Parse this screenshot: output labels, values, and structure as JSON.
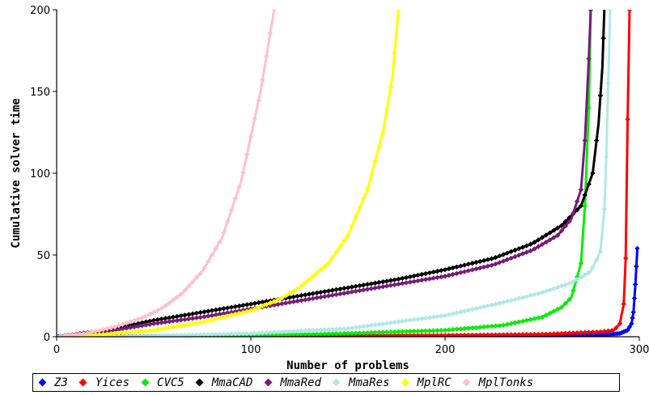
{
  "chart_data": {
    "type": "line",
    "title": "",
    "xlabel": "Number of problems",
    "ylabel": "Cumulative solver time",
    "xlim": [
      0,
      300
    ],
    "ylim": [
      0,
      200
    ],
    "x_ticks": [
      "0",
      "100",
      "200",
      "300"
    ],
    "y_ticks": [
      "0",
      "50",
      "100",
      "150",
      "200"
    ],
    "legend_position": "bottom",
    "series": [
      {
        "name": "Z3",
        "color": "#0000ff",
        "points": [
          [
            0,
            0
          ],
          [
            100,
            0.1
          ],
          [
            200,
            0.3
          ],
          [
            250,
            0.6
          ],
          [
            280,
            1
          ],
          [
            290,
            2
          ],
          [
            294,
            4
          ],
          [
            296,
            8
          ],
          [
            297,
            15
          ],
          [
            298,
            32
          ],
          [
            299,
            54
          ]
        ]
      },
      {
        "name": "Yices",
        "color": "#ff0000",
        "points": [
          [
            0,
            0
          ],
          [
            100,
            0.3
          ],
          [
            200,
            0.8
          ],
          [
            250,
            1.5
          ],
          [
            280,
            3
          ],
          [
            287,
            4
          ],
          [
            290,
            8
          ],
          [
            292,
            20
          ],
          [
            293,
            48
          ],
          [
            294,
            133
          ],
          [
            295,
            200
          ]
        ]
      },
      {
        "name": "CVC5",
        "color": "#00ee00",
        "points": [
          [
            0,
            0
          ],
          [
            50,
            0.5
          ],
          [
            100,
            1
          ],
          [
            150,
            2
          ],
          [
            200,
            4
          ],
          [
            230,
            7
          ],
          [
            250,
            12
          ],
          [
            260,
            18
          ],
          [
            265,
            24
          ],
          [
            270,
            45
          ],
          [
            272,
            80
          ],
          [
            274,
            140
          ],
          [
            275,
            200
          ]
        ]
      },
      {
        "name": "MmaCAD",
        "color": "#000000",
        "points": [
          [
            0,
            0
          ],
          [
            25,
            4
          ],
          [
            50,
            10
          ],
          [
            75,
            15
          ],
          [
            100,
            20
          ],
          [
            125,
            25
          ],
          [
            150,
            30
          ],
          [
            175,
            35
          ],
          [
            200,
            41
          ],
          [
            225,
            48
          ],
          [
            245,
            57
          ],
          [
            260,
            68
          ],
          [
            270,
            80
          ],
          [
            276,
            100
          ],
          [
            279,
            130
          ],
          [
            281,
            165
          ],
          [
            282,
            200
          ]
        ]
      },
      {
        "name": "MmaRed",
        "color": "#7a1a7a",
        "points": [
          [
            0,
            0
          ],
          [
            25,
            3
          ],
          [
            50,
            8
          ],
          [
            75,
            12
          ],
          [
            100,
            17
          ],
          [
            125,
            22
          ],
          [
            150,
            27
          ],
          [
            175,
            32
          ],
          [
            200,
            37
          ],
          [
            225,
            44
          ],
          [
            245,
            53
          ],
          [
            258,
            62
          ],
          [
            265,
            72
          ],
          [
            270,
            90
          ],
          [
            272,
            120
          ],
          [
            274,
            170
          ],
          [
            275,
            200
          ]
        ]
      },
      {
        "name": "MmaRes",
        "color": "#b0e8e8",
        "points": [
          [
            0,
            0
          ],
          [
            50,
            0.5
          ],
          [
            100,
            2
          ],
          [
            150,
            5
          ],
          [
            200,
            13
          ],
          [
            230,
            21
          ],
          [
            250,
            27
          ],
          [
            265,
            33
          ],
          [
            275,
            40
          ],
          [
            280,
            52
          ],
          [
            282,
            78
          ],
          [
            283,
            110
          ],
          [
            284,
            155
          ],
          [
            285,
            200
          ]
        ]
      },
      {
        "name": "MplRC",
        "color": "#ffff00",
        "points": [
          [
            0,
            0
          ],
          [
            25,
            1.5
          ],
          [
            50,
            4
          ],
          [
            75,
            9
          ],
          [
            100,
            16
          ],
          [
            115,
            23
          ],
          [
            125,
            30
          ],
          [
            140,
            45
          ],
          [
            150,
            62
          ],
          [
            160,
            90
          ],
          [
            168,
            125
          ],
          [
            173,
            160
          ],
          [
            176,
            200
          ]
        ]
      },
      {
        "name": "MplTonks",
        "color": "#ffc0cb",
        "points": [
          [
            0,
            0
          ],
          [
            15,
            2
          ],
          [
            30,
            6
          ],
          [
            45,
            12
          ],
          [
            55,
            18
          ],
          [
            65,
            27
          ],
          [
            75,
            40
          ],
          [
            85,
            60
          ],
          [
            95,
            95
          ],
          [
            105,
            150
          ],
          [
            112,
            200
          ]
        ]
      }
    ]
  }
}
